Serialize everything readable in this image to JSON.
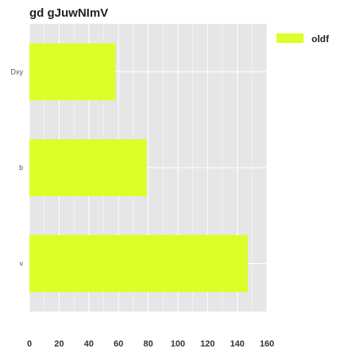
{
  "chart_data": {
    "type": "bar",
    "orientation": "horizontal",
    "title": "gd gJuwNImV",
    "xlabel": "",
    "ylabel": "",
    "categories": [
      "Dxy",
      "b",
      "v"
    ],
    "series": [
      {
        "name": "oldf",
        "values": [
          58,
          79,
          147
        ]
      }
    ],
    "xlim": [
      0,
      160
    ],
    "xticks": [
      0,
      20,
      40,
      60,
      80,
      100,
      120,
      140,
      160
    ],
    "grid": true,
    "legend": "top-right",
    "colors": {
      "bar": "#dbff28",
      "panel": "#e6e6e6",
      "grid": "#ffffff"
    }
  }
}
